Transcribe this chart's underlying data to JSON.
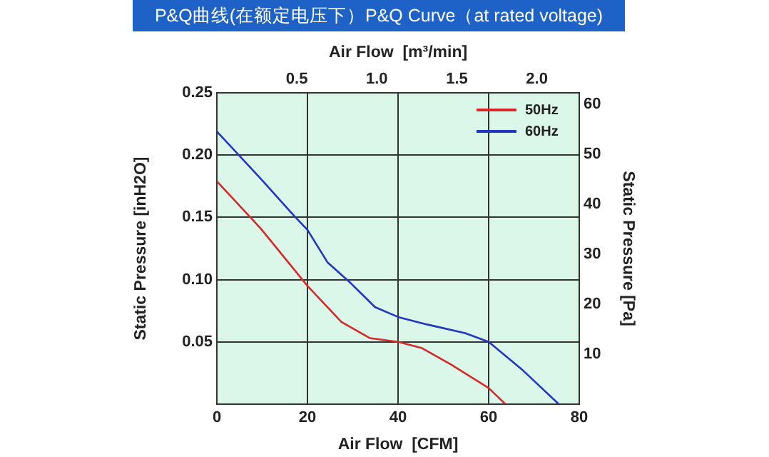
{
  "chart_data": {
    "type": "line",
    "title": "P&Q曲线(在额定电压下）P&Q Curve（at rated voltage)",
    "xlabel": "Air Flow  [CFM]",
    "x2label": "Air Flow  [m³/min]",
    "ylabel": "Static Pressure [inH2O]",
    "y2label": "Static Pressure [Pa]",
    "xlim": [
      0,
      80
    ],
    "xticks": [
      0,
      20,
      40,
      60,
      80
    ],
    "x2lim": [
      0,
      2.265
    ],
    "x2ticks": [
      {
        "value": 0.5,
        "label": "0.5"
      },
      {
        "value": 1,
        "label": "1.0"
      },
      {
        "value": 1.5,
        "label": "1.5"
      },
      {
        "value": 2,
        "label": "2.0"
      }
    ],
    "ylim": [
      0,
      0.25
    ],
    "yticks": [
      {
        "value": 0.05,
        "label": "0.05"
      },
      {
        "value": 0.1,
        "label": "0.10"
      },
      {
        "value": 0.15,
        "label": "0.15"
      },
      {
        "value": 0.2,
        "label": "0.20"
      },
      {
        "value": 0.25,
        "label": "0.25"
      }
    ],
    "y2lim": [
      0,
      62.3
    ],
    "y2ticks": [
      10,
      20,
      30,
      40,
      50,
      60
    ],
    "grid": true,
    "legend": "top right",
    "marker": "none",
    "line_style": "solid",
    "series": [
      {
        "name": "50Hz",
        "color": "#d42a2a",
        "x": [
          0,
          9.7,
          20,
          27.5,
          33.8,
          40,
          45.3,
          51.6,
          60,
          63.7
        ],
        "values": [
          0.179,
          0.141,
          0.095,
          0.066,
          0.053,
          0.05,
          0.045,
          0.032,
          0.013,
          0
        ]
      },
      {
        "name": "60Hz",
        "color": "#2236c0",
        "x": [
          0,
          9.7,
          17.1,
          20,
          24.4,
          29.6,
          34.9,
          40,
          46.4,
          54.8,
          60,
          67.3,
          75.5
        ],
        "values": [
          0.219,
          0.181,
          0.151,
          0.14,
          0.114,
          0.097,
          0.078,
          0.07,
          0.064,
          0.057,
          0.05,
          0.028,
          0
        ]
      }
    ]
  }
}
